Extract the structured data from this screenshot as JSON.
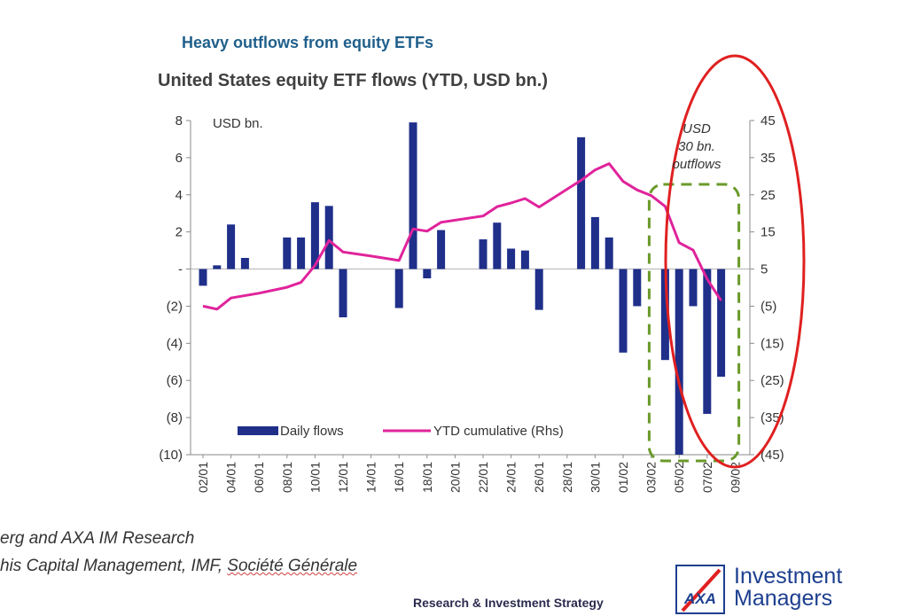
{
  "headline": "Heavy outflows from equity ETFs",
  "subtitle": "United States equity ETF flows (YTD, USD bn.)",
  "source_line1": "erg and AXA IM Research",
  "source_line2_a": "his Capital Management, IMF, ",
  "source_line2_b": "Société Générale",
  "footer": {
    "strategy": "Research & Investment Strategy",
    "brand_line1": "Investment",
    "brand_line2": "Managers",
    "logo_text": "AXA"
  },
  "colors": {
    "bar": "#1f2f8a",
    "line": "#e0239b",
    "headline": "#1f5f8b",
    "circle": "#e02020",
    "highlight_box": "#6a9a2a"
  },
  "chart_data": {
    "type": "bar",
    "title": "United States equity ETF flows (YTD, USD bn.)",
    "left_axis_unit": "USD bn.",
    "ylim_left": [
      -10,
      8
    ],
    "yticks_left": [
      8,
      6,
      4,
      2,
      0,
      -2,
      -4,
      -6,
      -8,
      -10
    ],
    "ytick_labels_left": [
      "8",
      "6",
      "4",
      "2",
      "-",
      "(2)",
      "(4)",
      "(6)",
      "(8)",
      "(10)"
    ],
    "ylim_right": [
      -45,
      45
    ],
    "yticks_right": [
      45,
      35,
      25,
      15,
      5,
      -5,
      -15,
      -25,
      -35,
      -45
    ],
    "ytick_labels_right": [
      "45",
      "35",
      "25",
      "15",
      "5",
      "(5)",
      "(15)",
      "(25)",
      "(35)",
      "(45)"
    ],
    "x_labels": [
      "02/01",
      "04/01",
      "06/01",
      "08/01",
      "10/01",
      "12/01",
      "14/01",
      "16/01",
      "18/01",
      "20/01",
      "22/01",
      "24/01",
      "26/01",
      "28/01",
      "30/01",
      "01/02",
      "03/02",
      "05/02",
      "07/02",
      "09/02"
    ],
    "series": [
      {
        "name": "Daily flows",
        "axis": "left",
        "kind": "bar",
        "points": [
          [
            0.0,
            -0.9
          ],
          [
            0.5,
            0.2
          ],
          [
            1.0,
            2.4
          ],
          [
            1.5,
            0.6
          ],
          [
            3.0,
            1.7
          ],
          [
            3.5,
            1.7
          ],
          [
            4.0,
            3.6
          ],
          [
            4.5,
            3.4
          ],
          [
            5.0,
            -2.6
          ],
          [
            7.0,
            -2.1
          ],
          [
            7.5,
            7.9
          ],
          [
            8.0,
            -0.5
          ],
          [
            8.5,
            2.1
          ],
          [
            10.0,
            1.6
          ],
          [
            10.5,
            2.5
          ],
          [
            11.0,
            1.1
          ],
          [
            11.5,
            1.0
          ],
          [
            12.0,
            -2.2
          ],
          [
            13.5,
            7.1
          ],
          [
            14.0,
            2.8
          ],
          [
            14.5,
            1.7
          ],
          [
            15.0,
            -4.5
          ],
          [
            15.5,
            -2.0
          ],
          [
            16.5,
            -4.9
          ],
          [
            17.0,
            -10.0
          ],
          [
            17.5,
            -2.0
          ],
          [
            18.0,
            -7.8
          ],
          [
            18.5,
            -5.8
          ]
        ]
      },
      {
        "name": "YTD cumulative (Rhs)",
        "axis": "right",
        "kind": "line",
        "points": [
          [
            0.0,
            -5
          ],
          [
            0.5,
            -5.8
          ],
          [
            1.0,
            -2.8
          ],
          [
            2.0,
            -1.5
          ],
          [
            3.0,
            0.1
          ],
          [
            3.5,
            1.4
          ],
          [
            4.0,
            6.0
          ],
          [
            4.5,
            12.7
          ],
          [
            5.0,
            9.6
          ],
          [
            6.0,
            8.5
          ],
          [
            7.0,
            7.3
          ],
          [
            7.5,
            15.8
          ],
          [
            8.0,
            15.2
          ],
          [
            8.5,
            17.6
          ],
          [
            10.0,
            19.3
          ],
          [
            10.5,
            21.8
          ],
          [
            11.0,
            22.8
          ],
          [
            11.5,
            24.0
          ],
          [
            12.0,
            21.7
          ],
          [
            13.5,
            28.9
          ],
          [
            14.0,
            31.7
          ],
          [
            14.5,
            33.4
          ],
          [
            15.0,
            28.6
          ],
          [
            15.5,
            26.3
          ],
          [
            16.0,
            24.8
          ],
          [
            16.5,
            21.9
          ],
          [
            17.0,
            12.1
          ],
          [
            17.5,
            10.1
          ],
          [
            18.0,
            2.3
          ],
          [
            18.5,
            -3.5
          ]
        ]
      }
    ],
    "legend": [
      "Daily flows",
      "YTD cumulative (Rhs)"
    ],
    "legend_position": "bottom-center",
    "annotation": {
      "lines": [
        "USD",
        "30 bn.",
        "outflows"
      ],
      "highlight_x_range": [
        16.5,
        18.5
      ]
    }
  }
}
